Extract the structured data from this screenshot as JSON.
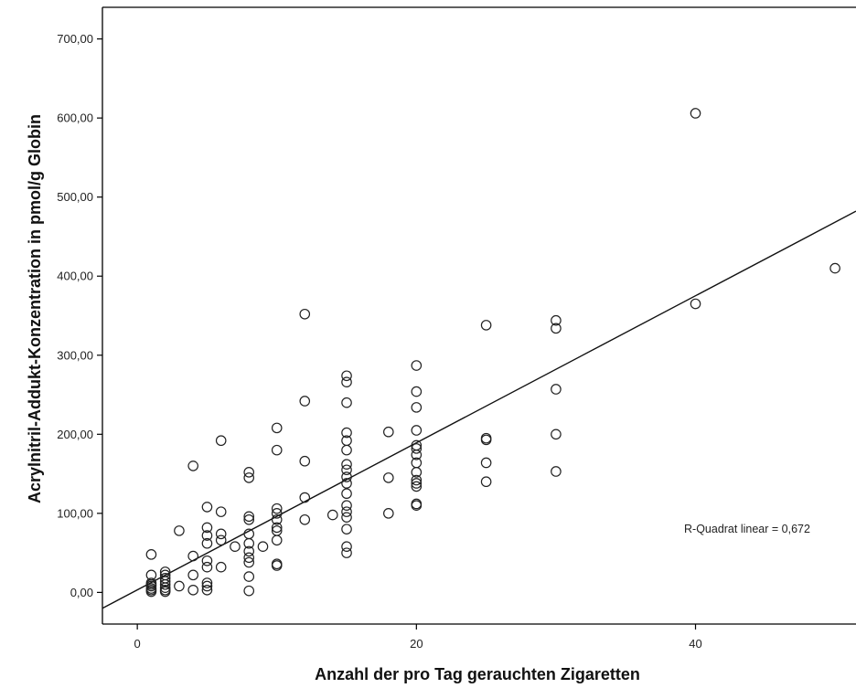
{
  "chart_data": {
    "type": "scatter",
    "xlabel": "Anzahl der pro Tag gerauchten Zigaretten",
    "ylabel": "Acrylnitril-Addukt-Konzentration in pmol/g Globin",
    "xlim": [
      -2.5,
      51.5
    ],
    "ylim": [
      -40,
      740
    ],
    "x_ticks": [
      0,
      20,
      40
    ],
    "x_tick_labels": [
      "0",
      "20",
      "40"
    ],
    "y_ticks": [
      0,
      100,
      200,
      300,
      400,
      500,
      600,
      700
    ],
    "y_tick_labels": [
      "0,00",
      "100,00",
      "200,00",
      "300,00",
      "400,00",
      "500,00",
      "600,00",
      "700,00"
    ],
    "grid": false,
    "annotation": "R-Quadrat linear = 0,672",
    "fit_line": {
      "intercept": 3.2,
      "slope": 9.3
    },
    "points": [
      [
        1,
        48
      ],
      [
        1,
        22
      ],
      [
        1,
        12
      ],
      [
        1,
        10
      ],
      [
        1,
        8
      ],
      [
        1,
        5
      ],
      [
        1,
        3
      ],
      [
        1,
        1
      ],
      [
        2,
        26
      ],
      [
        2,
        22
      ],
      [
        2,
        18
      ],
      [
        2,
        14
      ],
      [
        2,
        10
      ],
      [
        2,
        6
      ],
      [
        2,
        3
      ],
      [
        2,
        1
      ],
      [
        3,
        78
      ],
      [
        3,
        8
      ],
      [
        4,
        160
      ],
      [
        4,
        46
      ],
      [
        4,
        22
      ],
      [
        4,
        3
      ],
      [
        5,
        108
      ],
      [
        5,
        82
      ],
      [
        5,
        72
      ],
      [
        5,
        62
      ],
      [
        5,
        40
      ],
      [
        5,
        32
      ],
      [
        5,
        12
      ],
      [
        5,
        8
      ],
      [
        5,
        3
      ],
      [
        6,
        192
      ],
      [
        6,
        102
      ],
      [
        6,
        74
      ],
      [
        6,
        66
      ],
      [
        6,
        32
      ],
      [
        7,
        58
      ],
      [
        8,
        152
      ],
      [
        8,
        145
      ],
      [
        8,
        96
      ],
      [
        8,
        92
      ],
      [
        8,
        74
      ],
      [
        8,
        62
      ],
      [
        8,
        52
      ],
      [
        8,
        44
      ],
      [
        8,
        38
      ],
      [
        8,
        20
      ],
      [
        8,
        2
      ],
      [
        9,
        58
      ],
      [
        10,
        208
      ],
      [
        10,
        180
      ],
      [
        10,
        106
      ],
      [
        10,
        100
      ],
      [
        10,
        92
      ],
      [
        10,
        82
      ],
      [
        10,
        78
      ],
      [
        10,
        66
      ],
      [
        10,
        36
      ],
      [
        10,
        34
      ],
      [
        12,
        352
      ],
      [
        12,
        242
      ],
      [
        12,
        166
      ],
      [
        12,
        120
      ],
      [
        12,
        92
      ],
      [
        14,
        98
      ],
      [
        15,
        274
      ],
      [
        15,
        266
      ],
      [
        15,
        240
      ],
      [
        15,
        202
      ],
      [
        15,
        192
      ],
      [
        15,
        180
      ],
      [
        15,
        162
      ],
      [
        15,
        155
      ],
      [
        15,
        146
      ],
      [
        15,
        138
      ],
      [
        15,
        125
      ],
      [
        15,
        110
      ],
      [
        15,
        102
      ],
      [
        15,
        95
      ],
      [
        15,
        80
      ],
      [
        15,
        58
      ],
      [
        15,
        50
      ],
      [
        18,
        203
      ],
      [
        18,
        145
      ],
      [
        18,
        100
      ],
      [
        20,
        287
      ],
      [
        20,
        254
      ],
      [
        20,
        234
      ],
      [
        20,
        205
      ],
      [
        20,
        186
      ],
      [
        20,
        182
      ],
      [
        20,
        174
      ],
      [
        20,
        164
      ],
      [
        20,
        152
      ],
      [
        20,
        142
      ],
      [
        20,
        138
      ],
      [
        20,
        134
      ],
      [
        20,
        112
      ],
      [
        20,
        110
      ],
      [
        25,
        338
      ],
      [
        25,
        195
      ],
      [
        25,
        193
      ],
      [
        25,
        164
      ],
      [
        25,
        140
      ],
      [
        30,
        344
      ],
      [
        30,
        334
      ],
      [
        30,
        257
      ],
      [
        30,
        200
      ],
      [
        30,
        153
      ],
      [
        40,
        606
      ],
      [
        40,
        365
      ],
      [
        50,
        410
      ]
    ]
  }
}
